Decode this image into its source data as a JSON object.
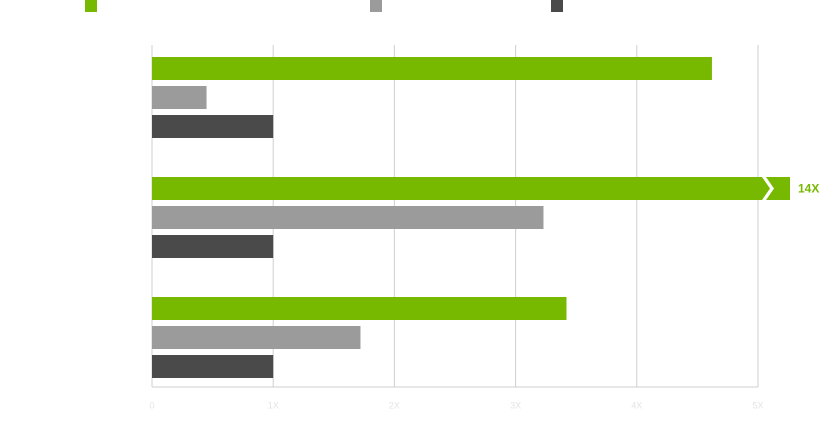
{
  "chart_data": {
    "type": "bar",
    "orientation": "horizontal",
    "categories": [
      null,
      null,
      null
    ],
    "series": [
      {
        "color": "#76b900",
        "values": [
          4.62,
          14,
          3.42
        ],
        "value_labels": [
          null,
          "14X",
          null
        ]
      },
      {
        "color": "#9b9b9b",
        "values": [
          0.45,
          3.23,
          1.72
        ]
      },
      {
        "color": "#4a4a4a",
        "values": [
          1,
          1,
          1
        ]
      }
    ],
    "xlim": [
      0,
      5
    ],
    "xticks": [
      0,
      {
        "value": 1,
        "label": "1X"
      },
      {
        "value": 2,
        "label": "2X"
      },
      {
        "value": 3,
        "label": "3X"
      },
      {
        "value": 4,
        "label": "4X"
      },
      {
        "value": 5,
        "label": "5X"
      }
    ],
    "grid": true
  }
}
